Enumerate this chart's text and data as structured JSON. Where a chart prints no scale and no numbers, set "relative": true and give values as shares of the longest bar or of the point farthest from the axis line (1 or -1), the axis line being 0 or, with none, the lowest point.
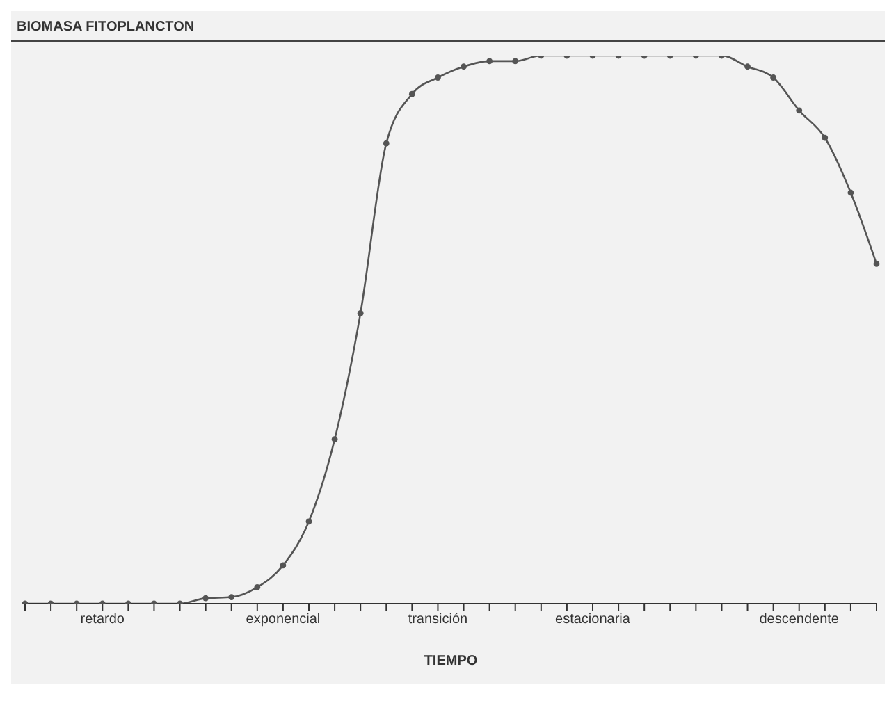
{
  "chart_data": {
    "type": "line",
    "title": "BIOMASA FITOPLANCTON",
    "xlabel": "TIEMPO",
    "relative": true,
    "marker": "circle",
    "line_style": "solid",
    "categories": [
      null,
      null,
      null,
      "retardo",
      null,
      null,
      null,
      null,
      null,
      null,
      "exponencial",
      null,
      null,
      null,
      null,
      null,
      "transición",
      null,
      null,
      null,
      null,
      null,
      "estacionaria",
      null,
      null,
      null,
      null,
      null,
      null,
      null,
      "descendente",
      null,
      null,
      null
    ],
    "series": [
      {
        "color": "#555555",
        "values": [
          0,
          0,
          0,
          0,
          0,
          0,
          0,
          0.01,
          0.012,
          0.03,
          0.07,
          0.15,
          0.3,
          0.53,
          0.84,
          0.93,
          0.96,
          0.98,
          0.99,
          0.99,
          1,
          1,
          1,
          1,
          1,
          1,
          1,
          1,
          0.98,
          0.96,
          0.9,
          0.85,
          0.75,
          0.62
        ]
      }
    ]
  }
}
